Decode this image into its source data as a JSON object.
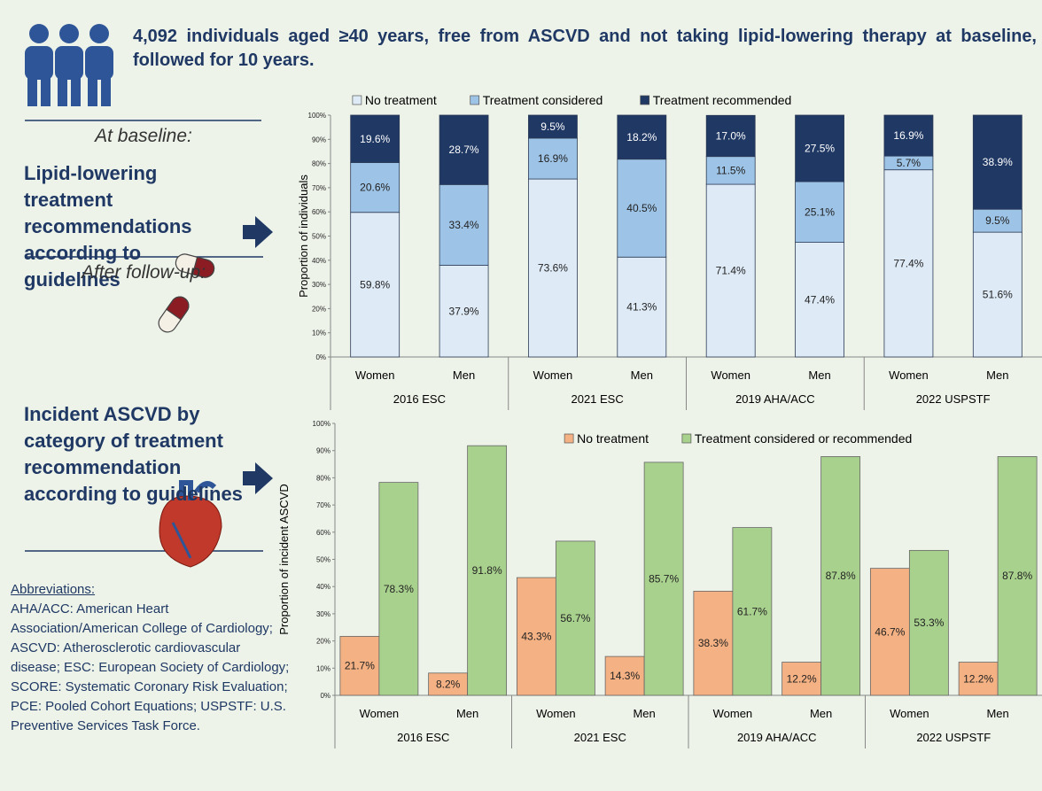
{
  "header": {
    "title": "4,092 individuals aged ≥40 years, free from ASCVD and not taking lipid-lowering therapy at baseline, followed for 10 years."
  },
  "sidebar": {
    "baseline_label": "At baseline:",
    "baseline_text": "Lipid-lowering treatment recommendations according to guidelines",
    "followup_label": "After follow-up:",
    "followup_text": "Incident ASCVD by category of treatment recommendation according to guidelines",
    "abbreviations_title": "Abbreviations:",
    "abbreviations": "AHA/ACC: American Heart Association/American College of Cardiology; ASCVD: Atherosclerotic cardiovascular disease; ESC: European Society of Cardiology; SCORE: Systematic Coronary Risk Evaluation; PCE: Pooled Cohort Equations; USPSTF: U.S. Preventive Services Task Force."
  },
  "chart_data": [
    {
      "type": "stacked_bar",
      "y_label": "Proportion of individuals",
      "legend": "top",
      "categories": [
        "Women",
        "Men",
        "Women",
        "Men",
        "Women",
        "Men",
        "Women",
        "Men"
      ],
      "groups": [
        "2016 ESC",
        "2021 ESC",
        "2019 AHA/ACC",
        "2022 USPSTF"
      ],
      "ylim": [
        0,
        100
      ],
      "yticks": [
        {
          "value": 0,
          "label": "0%"
        },
        {
          "value": 10,
          "label": "10%"
        },
        {
          "value": 20,
          "label": "20%"
        },
        {
          "value": 30,
          "label": "30%"
        },
        {
          "value": 40,
          "label": "40%"
        },
        {
          "value": 50,
          "label": "50%"
        },
        {
          "value": 60,
          "label": "60%"
        },
        {
          "value": 70,
          "label": "70%"
        },
        {
          "value": 80,
          "label": "80%"
        },
        {
          "value": 90,
          "label": "90%"
        },
        {
          "value": 100,
          "label": "100%"
        }
      ],
      "series": [
        {
          "name": "No treatment",
          "color": "#deebf7",
          "values": [
            59.8,
            37.9,
            73.6,
            41.3,
            71.4,
            47.4,
            77.4,
            51.6
          ],
          "value_labels": [
            "59.8%",
            "37.9%",
            "73.6%",
            "41.3%",
            "71.4%",
            "47.4%",
            "77.4%",
            "51.6%"
          ]
        },
        {
          "name": "Treatment considered",
          "color": "#9dc3e6",
          "values": [
            20.6,
            33.4,
            16.9,
            40.5,
            11.5,
            25.1,
            5.7,
            9.5
          ],
          "value_labels": [
            "20.6%",
            "33.4%",
            "16.9%",
            "40.5%",
            "11.5%",
            "25.1%",
            "5.7%",
            "9.5%"
          ]
        },
        {
          "name": "Treatment recommended",
          "color": "#203864",
          "values": [
            19.6,
            28.7,
            9.5,
            18.2,
            17.0,
            27.5,
            16.9,
            38.9
          ],
          "value_labels": [
            "19.6%",
            "28.7%",
            "9.5%",
            "18.2%",
            "17.0%",
            "27.5%",
            "16.9%",
            "38.9%"
          ]
        }
      ]
    },
    {
      "type": "grouped_bar",
      "y_label": "Proportion of incident ASCVD",
      "legend": "upper center",
      "categories": [
        "Women",
        "Men",
        "Women",
        "Men",
        "Women",
        "Men",
        "Women",
        "Men"
      ],
      "groups": [
        "2016 ESC",
        "2021 ESC",
        "2019 AHA/ACC",
        "2022 USPSTF"
      ],
      "ylim": [
        0,
        100
      ],
      "yticks": [
        {
          "value": 0,
          "label": "0%"
        },
        {
          "value": 10,
          "label": "10%"
        },
        {
          "value": 20,
          "label": "20%"
        },
        {
          "value": 30,
          "label": "30%"
        },
        {
          "value": 40,
          "label": "40%"
        },
        {
          "value": 50,
          "label": "50%"
        },
        {
          "value": 60,
          "label": "60%"
        },
        {
          "value": 70,
          "label": "70%"
        },
        {
          "value": 80,
          "label": "80%"
        },
        {
          "value": 90,
          "label": "90%"
        },
        {
          "value": 100,
          "label": "100%"
        }
      ],
      "series": [
        {
          "name": "No treatment",
          "color": "#f4b183",
          "values": [
            21.7,
            8.2,
            43.3,
            14.3,
            38.3,
            12.2,
            46.7,
            12.2
          ],
          "value_labels": [
            "21.7%",
            "8.2%",
            "43.3%",
            "14.3%",
            "38.3%",
            "12.2%",
            "46.7%",
            "12.2%"
          ]
        },
        {
          "name": "Treatment considered or recommended",
          "color": "#a9d18e",
          "values": [
            78.3,
            91.8,
            56.7,
            85.7,
            61.7,
            87.8,
            53.3,
            87.8
          ],
          "value_labels": [
            "78.3%",
            "91.8%",
            "56.7%",
            "85.7%",
            "61.7%",
            "87.8%",
            "53.3%",
            "87.8%"
          ]
        }
      ]
    }
  ]
}
